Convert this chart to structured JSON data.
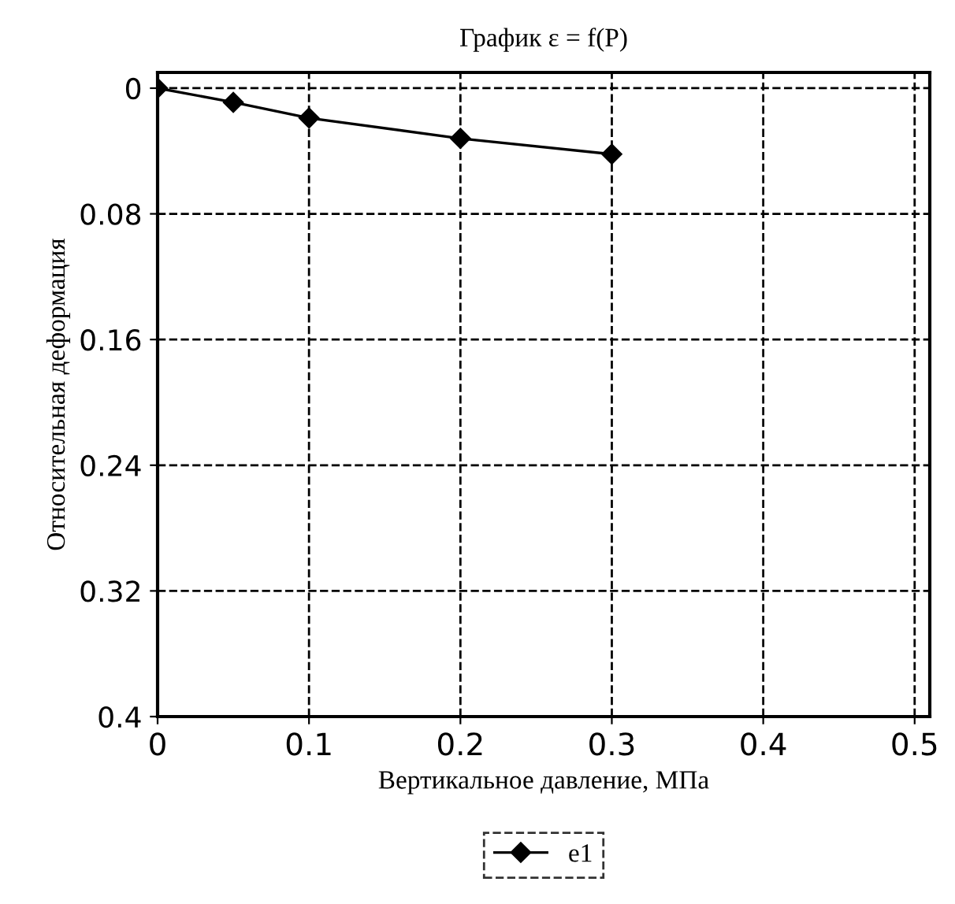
{
  "chart_data": {
    "type": "line",
    "title": "График ε = f(P)",
    "xlabel": "Вертикальное давление, МПа",
    "ylabel": "Относительная деформация",
    "x": [
      0,
      0.05,
      0.1,
      0.2,
      0.3
    ],
    "series": [
      {
        "name": "e1",
        "color": "#000000",
        "values": [
          0,
          0.009,
          0.019,
          0.032,
          0.042
        ]
      }
    ],
    "xlim": [
      0,
      0.51
    ],
    "xticks": [
      0,
      0.1,
      0.2,
      0.3,
      0.4,
      0.5
    ],
    "ylim": [
      0.4,
      -0.01
    ],
    "yticks": [
      0,
      0.08,
      0.16,
      0.24,
      0.32,
      0.4
    ],
    "grid": true,
    "legend": "bottom",
    "marker": "diamond",
    "line_style": "solid"
  }
}
